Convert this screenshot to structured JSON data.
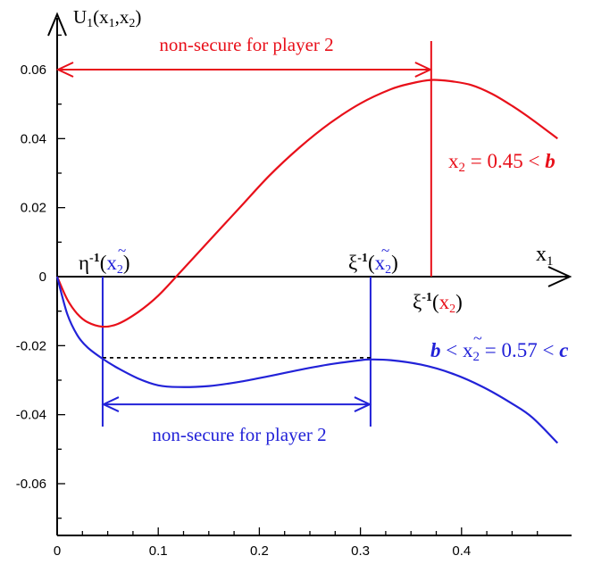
{
  "chart_data": {
    "type": "line",
    "ylabel": "U",
    "ylabel_sub1": "1",
    "ylabel_args": "(x",
    "ylabel_sub2": "1",
    "ylabel_comma": ",x",
    "ylabel_sub3": "2",
    "ylabel_close": ")",
    "xlabel": "x",
    "xlabel_sub": "1",
    "xlim": [
      0,
      0.5
    ],
    "ylim": [
      -0.075,
      0.075
    ],
    "x_ticks": [
      0,
      0.1,
      0.2,
      0.3,
      0.4
    ],
    "x_tick_labels": [
      "0",
      "0.1",
      "0.2",
      "0.3",
      "0.4"
    ],
    "y_ticks": [
      0.06,
      0.04,
      0.02,
      0,
      -0.02,
      -0.04,
      -0.06
    ],
    "y_tick_labels": [
      "0.06",
      "0.04",
      "0.02",
      "0",
      "-0.02",
      "-0.04",
      "-0.06"
    ],
    "colors": {
      "red": "#e8101a",
      "blue": "#2222d8",
      "axis": "#000000"
    },
    "series": [
      {
        "label_text_var": "x",
        "label_text_sub": "2",
        "label_text_rest": " = 0.45 < ",
        "label_text_b": "b",
        "color": "#e8101a",
        "x": [
          0,
          0.01,
          0.02,
          0.03,
          0.045,
          0.06,
          0.08,
          0.1,
          0.12,
          0.15,
          0.18,
          0.21,
          0.24,
          0.27,
          0.3,
          0.33,
          0.35,
          0.37,
          0.39,
          0.41,
          0.43,
          0.45,
          0.47,
          0.495
        ],
        "y": [
          0,
          -0.0066,
          -0.0108,
          -0.0132,
          -0.0145,
          -0.0137,
          -0.0103,
          -0.0055,
          0.0007,
          0.0103,
          0.0198,
          0.0293,
          0.0375,
          0.0445,
          0.0502,
          0.0543,
          0.056,
          0.057,
          0.0566,
          0.0555,
          0.053,
          0.0495,
          0.0455,
          0.04
        ]
      },
      {
        "label_text_b": "b",
        "label_text_lt": " < ",
        "label_text_var": "x",
        "label_text_tilde": "~",
        "label_text_sub": "2",
        "label_text_rest": " = 0.57 < ",
        "label_text_c": "c",
        "color": "#2222d8",
        "x": [
          0,
          0.01,
          0.02,
          0.03,
          0.045,
          0.06,
          0.08,
          0.1,
          0.12,
          0.15,
          0.18,
          0.21,
          0.24,
          0.27,
          0.3,
          0.31,
          0.33,
          0.36,
          0.39,
          0.42,
          0.45,
          0.47,
          0.495
        ],
        "y": [
          0,
          -0.0108,
          -0.017,
          -0.0205,
          -0.0238,
          -0.0265,
          -0.0295,
          -0.0315,
          -0.032,
          -0.0317,
          -0.0305,
          -0.0288,
          -0.027,
          -0.0254,
          -0.0242,
          -0.024,
          -0.0242,
          -0.0255,
          -0.028,
          -0.0318,
          -0.0368,
          -0.0408,
          -0.0482
        ]
      }
    ],
    "annotations": {
      "top_arrow_text": "non-secure for player 2",
      "bottom_arrow_text": "non-secure for player 2",
      "red_vline_x": 0.37,
      "blue_vline_left_x": 0.045,
      "blue_vline_right_x": 0.31,
      "top_arrow_y": 0.06,
      "bottom_arrow_y": -0.037,
      "dashed_y": -0.0235,
      "eta_label": "η",
      "xi_label": "ξ",
      "inv_sup": "-1",
      "open_paren": "(",
      "close_paren": ")",
      "x_var": "x",
      "x_sub": "2",
      "tilde": "~"
    }
  }
}
